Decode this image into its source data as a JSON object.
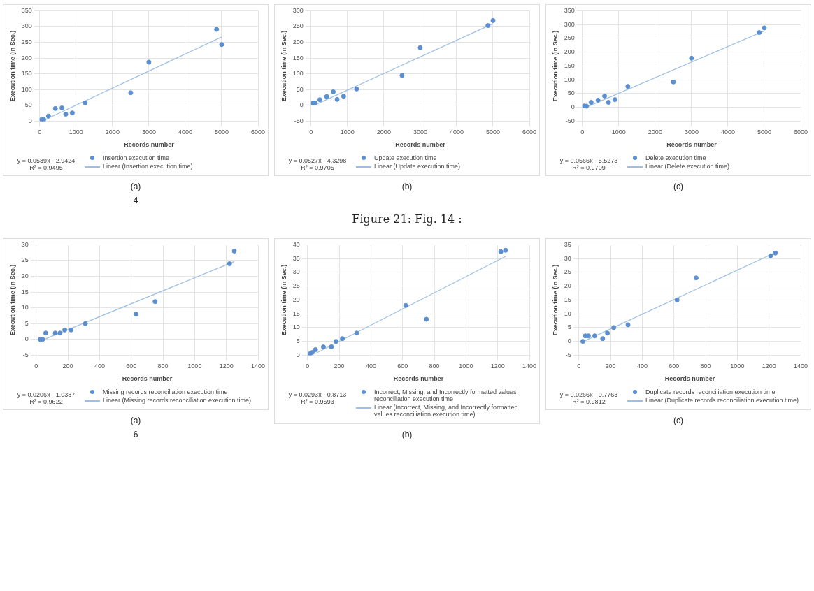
{
  "chart_data": [
    {
      "type": "scatter",
      "xlabel": "Records number",
      "ylabel": "Execution time (in Sec.)",
      "xlim": [
        0,
        6000
      ],
      "xticks": [
        0,
        1000,
        2000,
        3000,
        4000,
        5000,
        6000
      ],
      "ylim": [
        0,
        350
      ],
      "yticks": [
        0,
        50,
        100,
        150,
        200,
        250,
        300,
        350
      ],
      "grid": true,
      "legend": "bottom",
      "marker": "circle",
      "annotations": [
        "y = 0.0539x - 2.9424",
        "R² = 0.9495",
        "(a)",
        "4"
      ],
      "series": [
        {
          "name": "Insertion execution time",
          "color": "#5b8fd0",
          "x": [
            50,
            110,
            240,
            430,
            610,
            715,
            895,
            1250,
            2500,
            3000,
            4860,
            5000
          ],
          "values": [
            5,
            5,
            16,
            40,
            42,
            22,
            26,
            58,
            90,
            187,
            291,
            243
          ]
        },
        {
          "type": "line",
          "name": "Linear (Insertion execution time)",
          "color": "#9dbfe3",
          "marker": "none",
          "x": [
            100,
            5000
          ],
          "values": [
            2,
            267
          ]
        }
      ]
    },
    {
      "type": "scatter",
      "xlabel": "Records number",
      "ylabel": "Execution time (in Sec.)",
      "xlim": [
        0,
        6000
      ],
      "xticks": [
        0,
        1000,
        2000,
        3000,
        4000,
        5000,
        6000
      ],
      "ylim": [
        -50,
        300
      ],
      "yticks": [
        -50,
        0,
        50,
        100,
        150,
        200,
        250,
        300
      ],
      "grid": true,
      "legend": "bottom",
      "marker": "circle",
      "annotations": [
        "y = 0.0527x - 4.3298",
        "R² = 0.9705",
        "(b)",
        "Figure 21: Fig. 14 :"
      ],
      "series": [
        {
          "name": "Update execution time",
          "color": "#5b8fd0",
          "x": [
            50,
            110,
            240,
            430,
            610,
            715,
            895,
            1250,
            2500,
            3000,
            4860,
            5000
          ],
          "values": [
            7,
            8,
            18,
            28,
            43,
            19,
            29,
            52,
            95,
            183,
            253,
            269
          ]
        },
        {
          "type": "line",
          "name": "Linear (Update execution time)",
          "color": "#9dbfe3",
          "marker": "none",
          "x": [
            100,
            5000
          ],
          "values": [
            1,
            259
          ]
        }
      ]
    },
    {
      "type": "scatter",
      "xlabel": "Records number",
      "ylabel": "Execution time (in Sec.)",
      "xlim": [
        0,
        6000
      ],
      "xticks": [
        0,
        1000,
        2000,
        3000,
        4000,
        5000,
        6000
      ],
      "ylim": [
        -50,
        350
      ],
      "yticks": [
        -50,
        0,
        50,
        100,
        150,
        200,
        250,
        300,
        350
      ],
      "grid": true,
      "legend": "bottom",
      "marker": "circle",
      "annotations": [
        "y = 0.0566x - 5.5273",
        "R² = 0.9709",
        "(c)"
      ],
      "series": [
        {
          "name": "Delete execution time",
          "color": "#5b8fd0",
          "x": [
            50,
            110,
            240,
            430,
            610,
            715,
            895,
            1250,
            2500,
            3000,
            4860,
            5000
          ],
          "values": [
            5,
            4,
            18,
            26,
            41,
            18,
            28,
            76,
            92,
            178,
            271,
            288
          ]
        },
        {
          "type": "line",
          "name": "Linear (Delete execution time)",
          "color": "#9dbfe3",
          "marker": "none",
          "x": [
            100,
            5000
          ],
          "values": [
            0,
            277
          ]
        }
      ]
    },
    {
      "type": "scatter",
      "xlabel": "Records number",
      "ylabel": "Execution time (in Sec.)",
      "xlim": [
        0,
        1400
      ],
      "xticks": [
        0,
        200,
        400,
        600,
        800,
        1000,
        1200,
        1400
      ],
      "ylim": [
        -5,
        30
      ],
      "yticks": [
        -5,
        0,
        5,
        10,
        15,
        20,
        25,
        30
      ],
      "grid": true,
      "legend": "bottom",
      "marker": "circle",
      "annotations": [
        "y = 0.0206x - 1.0387",
        "R² = 0.9622",
        "(a)",
        "6"
      ],
      "series": [
        {
          "name": "Missing records reconciliation execution time",
          "color": "#5b8fd0",
          "x": [
            25,
            40,
            60,
            120,
            150,
            180,
            220,
            310,
            630,
            750,
            1220,
            1250
          ],
          "values": [
            0,
            0,
            2,
            2,
            2,
            3,
            3,
            5,
            8,
            12,
            24,
            28
          ]
        },
        {
          "type": "line",
          "name": "Linear (Missing records reconciliation execution time)",
          "color": "#9dbfe3",
          "marker": "none",
          "x": [
            60,
            1250
          ],
          "values": [
            0.2,
            24.7
          ]
        }
      ]
    },
    {
      "type": "scatter",
      "xlabel": "Records number",
      "ylabel": "Execution time (in Sec.)",
      "xlim": [
        0,
        1400
      ],
      "xticks": [
        0,
        200,
        400,
        600,
        800,
        1000,
        1200,
        1400
      ],
      "ylim": [
        0,
        40
      ],
      "yticks": [
        0,
        5,
        10,
        15,
        20,
        25,
        30,
        35,
        40
      ],
      "grid": true,
      "legend": "bottom",
      "marker": "circle",
      "annotations": [
        "y = 0.0293x - 0.8713",
        "R² = 0.9593",
        "(b)"
      ],
      "series": [
        {
          "name": "Incorrect, Missing, and Incorrectly formatted values reconciliation execution time",
          "color": "#5b8fd0",
          "x": [
            15,
            30,
            50,
            100,
            150,
            180,
            220,
            310,
            620,
            750,
            1220,
            1250
          ],
          "values": [
            0.5,
            1,
            2,
            3,
            3,
            5,
            6,
            8,
            18,
            13,
            37.5,
            38
          ]
        },
        {
          "type": "line",
          "name": "Linear (Incorrect, Missing, and Incorrectly formatted values reconciliation execution time)",
          "color": "#9dbfe3",
          "marker": "none",
          "x": [
            50,
            1250
          ],
          "values": [
            0.6,
            35.8
          ]
        }
      ]
    },
    {
      "type": "scatter",
      "xlabel": "Records number",
      "ylabel": "Execution time (in Sec.)",
      "xlim": [
        0,
        1400
      ],
      "xticks": [
        0,
        200,
        400,
        600,
        800,
        1000,
        1200,
        1400
      ],
      "ylim": [
        -5,
        35
      ],
      "yticks": [
        -5,
        0,
        5,
        10,
        15,
        20,
        25,
        30,
        35
      ],
      "grid": true,
      "legend": "bottom",
      "marker": "circle",
      "annotations": [
        "y = 0.0266x - 0.7763",
        "R² = 0.9812",
        "(c)"
      ],
      "series": [
        {
          "name": "Duplicate records reconciliation execution time",
          "color": "#5b8fd0",
          "x": [
            25,
            40,
            60,
            100,
            150,
            180,
            220,
            310,
            620,
            740,
            1210,
            1240
          ],
          "values": [
            0,
            2,
            2,
            2,
            1,
            3,
            5,
            6,
            15,
            23,
            31,
            32
          ]
        },
        {
          "type": "line",
          "name": "Linear (Duplicate records reconciliation execution time)",
          "color": "#9dbfe3",
          "marker": "none",
          "x": [
            30,
            1240
          ],
          "values": [
            0,
            32.2
          ]
        }
      ]
    }
  ]
}
